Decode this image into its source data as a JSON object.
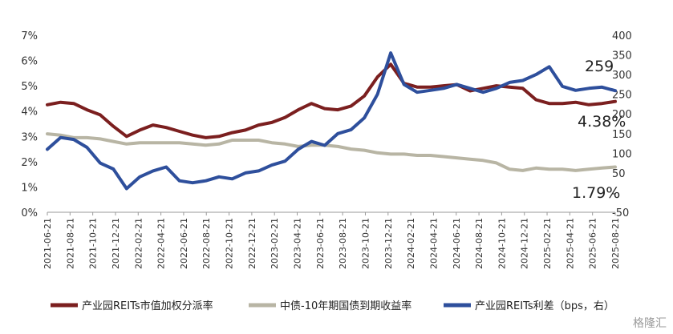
{
  "chart_data": {
    "type": "line",
    "x_labels": [
      "2021-06-21",
      "2021-08-21",
      "2021-10-21",
      "2021-12-21",
      "2022-02-21",
      "2022-04-21",
      "2022-06-21",
      "2022-08-21",
      "2022-10-21",
      "2022-12-21",
      "2023-02-21",
      "2023-04-21",
      "2023-06-21",
      "2023-08-21",
      "2023-10-21",
      "2023-12-21",
      "2024-02-21",
      "2024-04-21",
      "2024-06-21",
      "2024-08-21",
      "2024-10-21",
      "2024-12-21",
      "2025-02-21",
      "2025-04-21",
      "2025-06-21",
      "2025-08-21"
    ],
    "y_left": {
      "min": 0,
      "max": 7,
      "ticks": [
        "0%",
        "1%",
        "2%",
        "3%",
        "4%",
        "5%",
        "6%",
        "7%"
      ]
    },
    "y_right": {
      "min": -50,
      "max": 400,
      "ticks": [
        "-50",
        "-",
        "50",
        "100",
        "150",
        "200",
        "250",
        "300",
        "350",
        "400"
      ]
    },
    "grid": false,
    "legend_position": "bottom",
    "series": [
      {
        "name": "产业园REITs市值加权分派率",
        "axis": "left",
        "color": "#7b1f1f",
        "values": [
          4.25,
          4.35,
          4.3,
          4.05,
          3.85,
          3.4,
          3.0,
          3.25,
          3.45,
          3.35,
          3.2,
          3.05,
          2.95,
          3.0,
          3.15,
          3.25,
          3.45,
          3.55,
          3.75,
          4.05,
          4.3,
          4.1,
          4.05,
          4.2,
          4.6,
          5.35,
          5.85,
          5.1,
          4.95,
          4.95,
          5.0,
          5.05,
          4.8,
          4.9,
          5.0,
          4.95,
          4.9,
          4.45,
          4.3,
          4.3,
          4.35,
          4.25,
          4.3,
          4.38
        ]
      },
      {
        "name": "中债-10年期国债到期收益率",
        "axis": "left",
        "color": "#b8b5a4",
        "values": [
          3.1,
          3.05,
          2.95,
          2.95,
          2.9,
          2.8,
          2.7,
          2.75,
          2.75,
          2.75,
          2.75,
          2.7,
          2.65,
          2.7,
          2.85,
          2.85,
          2.85,
          2.75,
          2.7,
          2.6,
          2.65,
          2.65,
          2.6,
          2.5,
          2.45,
          2.35,
          2.3,
          2.3,
          2.25,
          2.25,
          2.2,
          2.15,
          2.1,
          2.05,
          1.95,
          1.7,
          1.65,
          1.75,
          1.7,
          1.7,
          1.65,
          1.7,
          1.75,
          1.79
        ]
      },
      {
        "name": "产业园REITs利差（bps，右）",
        "axis": "right",
        "color": "#2e4f9c",
        "values": [
          110,
          140,
          135,
          115,
          75,
          60,
          10,
          40,
          55,
          65,
          30,
          25,
          30,
          40,
          35,
          50,
          55,
          70,
          80,
          110,
          130,
          120,
          150,
          160,
          190,
          250,
          355,
          275,
          255,
          260,
          265,
          275,
          265,
          255,
          265,
          280,
          285,
          300,
          320,
          270,
          260,
          265,
          268,
          259
        ]
      }
    ],
    "annotations": [
      "259",
      "4.38%",
      "1.79%"
    ]
  },
  "watermark": "格隆汇"
}
